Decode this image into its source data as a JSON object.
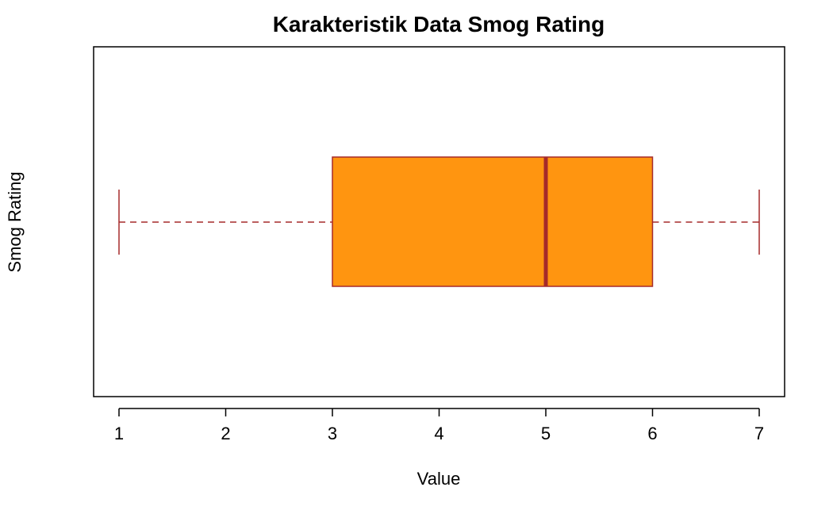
{
  "chart_data": {
    "type": "boxplot",
    "orientation": "horizontal",
    "title": "Karakteristik Data Smog Rating",
    "xlabel": "Value",
    "ylabel": "Smog Rating",
    "xlim": [
      1,
      7
    ],
    "ticks": [
      "1",
      "2",
      "3",
      "4",
      "5",
      "6",
      "7"
    ],
    "tick_values": [
      1,
      2,
      3,
      4,
      5,
      6,
      7
    ],
    "stats": {
      "min": 1,
      "q1": 3,
      "median": 5,
      "q3": 6,
      "max": 7
    },
    "grid": false,
    "colors": {
      "box_fill": "#FF9510",
      "box_border": "#A52A2A",
      "median": "#A52A2A",
      "whisker": "#A52A2A"
    }
  }
}
